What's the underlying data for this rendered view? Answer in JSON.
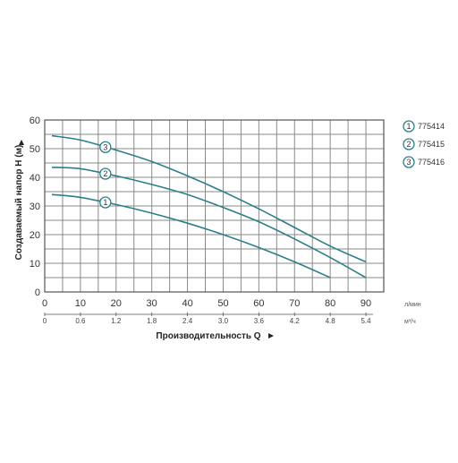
{
  "chart_data": {
    "type": "line",
    "ylabel": "Создаваемый напор H (м)",
    "xlabel": "Производительность Q",
    "x_unit_primary": "л/мин",
    "x_unit_secondary": "м³/ч",
    "xlim": [
      0,
      95
    ],
    "ylim": [
      0,
      60
    ],
    "x_ticks": [
      "0",
      "10",
      "20",
      "30",
      "40",
      "50",
      "60",
      "70",
      "80",
      "90"
    ],
    "x_ticks_secondary": [
      {
        "at": 0,
        "label": "0"
      },
      {
        "at": 10,
        "label": "0.6"
      },
      {
        "at": 20,
        "label": "1.2"
      },
      {
        "at": 30,
        "label": "1.8"
      },
      {
        "at": 40,
        "label": "2.4"
      },
      {
        "at": 50,
        "label": "3.0"
      },
      {
        "at": 60,
        "label": "3.6"
      },
      {
        "at": 70,
        "label": "4.2"
      },
      {
        "at": 80,
        "label": "4.8"
      },
      {
        "at": 90,
        "label": "5.4"
      }
    ],
    "y_ticks": [
      "0",
      "10",
      "20",
      "30",
      "40",
      "50",
      "60"
    ],
    "grid": true,
    "legend_position": "right",
    "series": [
      {
        "name": "775414",
        "marker": "1",
        "color": "#2b7f8c",
        "marker_at": 17,
        "x": [
          2,
          10,
          20,
          30,
          40,
          50,
          60,
          70,
          80
        ],
        "y": [
          34,
          33,
          30.5,
          27.5,
          24,
          20,
          15.5,
          10.5,
          5
        ]
      },
      {
        "name": "775415",
        "marker": "2",
        "color": "#2b7f8c",
        "marker_at": 17,
        "x": [
          2,
          10,
          20,
          30,
          40,
          50,
          60,
          70,
          80,
          90
        ],
        "y": [
          43.5,
          43,
          40.5,
          37.5,
          34,
          29.5,
          24.5,
          18.5,
          12,
          5
        ]
      },
      {
        "name": "775416",
        "marker": "3",
        "color": "#2b7f8c",
        "marker_at": 17,
        "x": [
          2,
          10,
          20,
          30,
          40,
          50,
          60,
          70,
          80,
          90
        ],
        "y": [
          54.5,
          53,
          49.5,
          45.5,
          40.5,
          35,
          29,
          22.5,
          16,
          10.5
        ]
      }
    ]
  }
}
